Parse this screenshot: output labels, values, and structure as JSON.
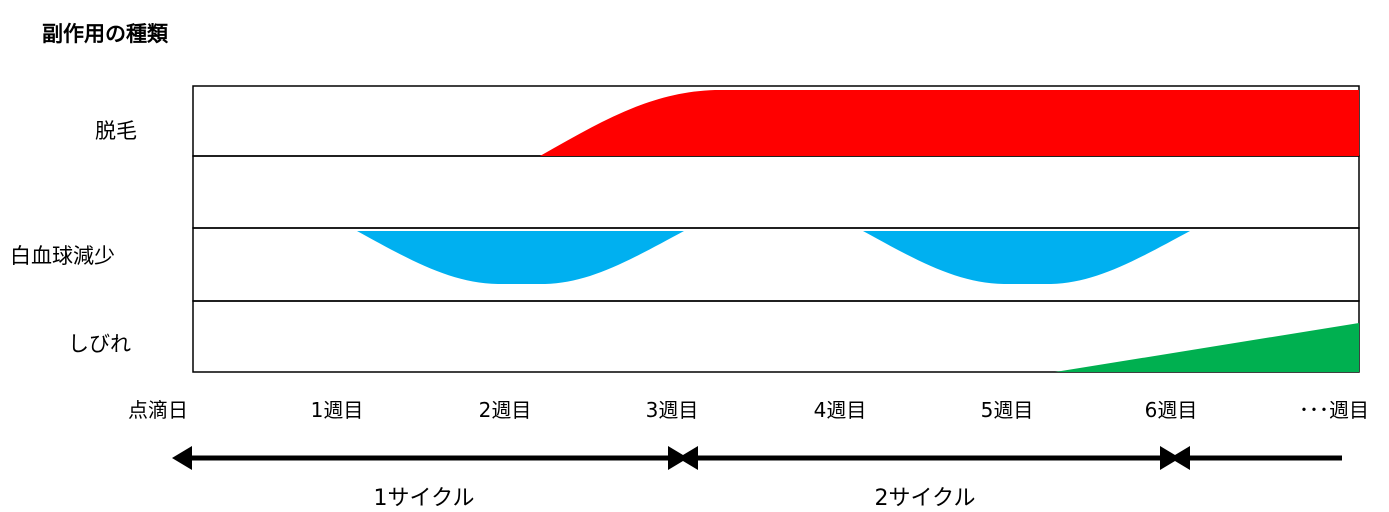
{
  "title": "副作用の種類",
  "rows": [
    {
      "label": "脱毛"
    },
    {
      "label": ""
    },
    {
      "label": "白血球減少"
    },
    {
      "label": "しびれ"
    }
  ],
  "timeline_ticks": [
    "点滴日",
    "1週目",
    "2週目",
    "3週目",
    "4週目",
    "5週目",
    "6週目",
    "･･･週目"
  ],
  "cycles": [
    {
      "label": "1サイクル"
    },
    {
      "label": "2サイクル"
    }
  ],
  "colors": {
    "hair_loss": "#ff0000",
    "wbc_decrease": "#00b0f0",
    "numbness": "#00b050",
    "border": "#000000"
  }
}
